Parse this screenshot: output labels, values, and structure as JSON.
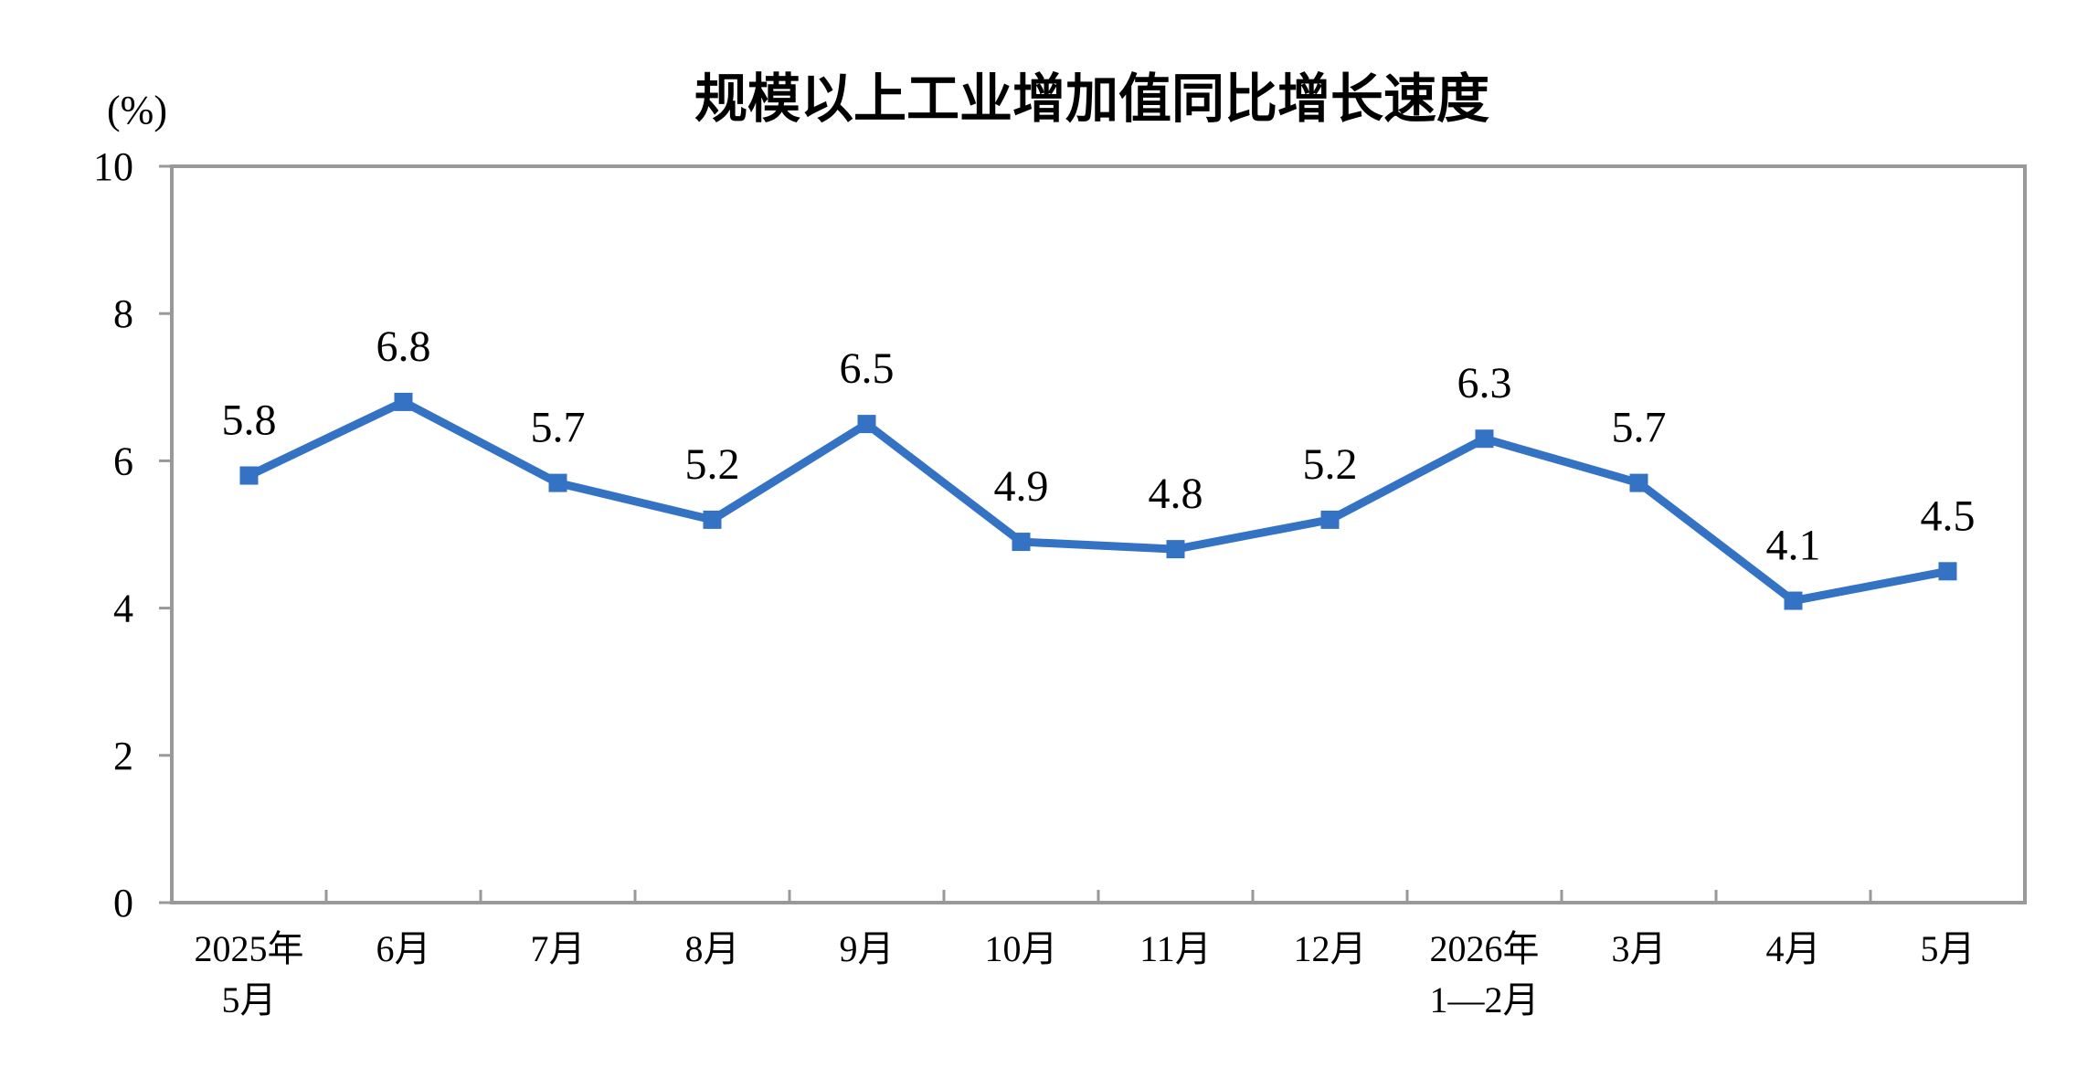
{
  "chart_data": {
    "type": "line",
    "title": "规模以上工业增加值同比增长速度",
    "unit_label": "(%)",
    "categories": [
      [
        "2025年",
        "5月"
      ],
      [
        "6月"
      ],
      [
        "7月"
      ],
      [
        "8月"
      ],
      [
        "9月"
      ],
      [
        "10月"
      ],
      [
        "11月"
      ],
      [
        "12月"
      ],
      [
        "2026年",
        "1—2月"
      ],
      [
        "3月"
      ],
      [
        "4月"
      ],
      [
        "5月"
      ]
    ],
    "series": [
      {
        "values": [
          5.8,
          6.8,
          5.7,
          5.2,
          6.5,
          4.9,
          4.8,
          5.2,
          6.3,
          5.7,
          4.1,
          4.5
        ],
        "color": "#3472c4"
      }
    ],
    "data_labels": [
      "5.8",
      "6.8",
      "5.7",
      "5.2",
      "6.5",
      "4.9",
      "4.8",
      "5.2",
      "6.3",
      "5.7",
      "4.1",
      "4.5"
    ],
    "ylim": [
      0,
      10
    ],
    "yticks": [
      0,
      2,
      4,
      6,
      8,
      10
    ],
    "grid": false,
    "legend": "none",
    "axis_color": "#999999"
  }
}
